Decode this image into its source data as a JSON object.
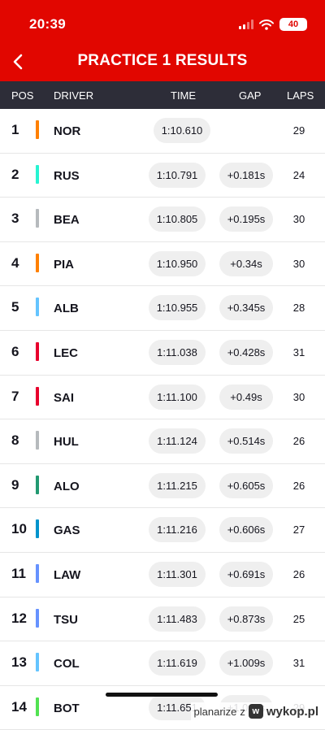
{
  "status_bar": {
    "time": "20:39",
    "battery": "40"
  },
  "header": {
    "title": "PRACTICE 1 RESULTS"
  },
  "columns": {
    "pos": "POS",
    "driver": "DRIVER",
    "time": "TIME",
    "gap": "GAP",
    "laps": "LAPS"
  },
  "colors": {
    "header": "#e10600",
    "column_bar": "#2d2d38"
  },
  "rows": [
    {
      "pos": "1",
      "driver": "NOR",
      "time": "1:10.610",
      "gap": "",
      "laps": "29",
      "color": "#ff8000"
    },
    {
      "pos": "2",
      "driver": "RUS",
      "time": "1:10.791",
      "gap": "+0.181s",
      "laps": "24",
      "color": "#27f4d2"
    },
    {
      "pos": "3",
      "driver": "BEA",
      "time": "1:10.805",
      "gap": "+0.195s",
      "laps": "30",
      "color": "#b6babd"
    },
    {
      "pos": "4",
      "driver": "PIA",
      "time": "1:10.950",
      "gap": "+0.34s",
      "laps": "30",
      "color": "#ff8000"
    },
    {
      "pos": "5",
      "driver": "ALB",
      "time": "1:10.955",
      "gap": "+0.345s",
      "laps": "28",
      "color": "#64c4ff"
    },
    {
      "pos": "6",
      "driver": "LEC",
      "time": "1:11.038",
      "gap": "+0.428s",
      "laps": "31",
      "color": "#e8002d"
    },
    {
      "pos": "7",
      "driver": "SAI",
      "time": "1:11.100",
      "gap": "+0.49s",
      "laps": "30",
      "color": "#e8002d"
    },
    {
      "pos": "8",
      "driver": "HUL",
      "time": "1:11.124",
      "gap": "+0.514s",
      "laps": "26",
      "color": "#b6babd"
    },
    {
      "pos": "9",
      "driver": "ALO",
      "time": "1:11.215",
      "gap": "+0.605s",
      "laps": "26",
      "color": "#229971"
    },
    {
      "pos": "10",
      "driver": "GAS",
      "time": "1:11.216",
      "gap": "+0.606s",
      "laps": "27",
      "color": "#0093cc"
    },
    {
      "pos": "11",
      "driver": "LAW",
      "time": "1:11.301",
      "gap": "+0.691s",
      "laps": "26",
      "color": "#6692ff"
    },
    {
      "pos": "12",
      "driver": "TSU",
      "time": "1:11.483",
      "gap": "+0.873s",
      "laps": "25",
      "color": "#6692ff"
    },
    {
      "pos": "13",
      "driver": "COL",
      "time": "1:11.619",
      "gap": "+1.009s",
      "laps": "31",
      "color": "#64c4ff"
    },
    {
      "pos": "14",
      "driver": "BOT",
      "time": "1:11.651",
      "gap": "+1.041s",
      "laps": "29",
      "color": "#52e252"
    }
  ],
  "watermark": {
    "user": "planarize",
    "separator": "z",
    "site": "wykop.pl"
  }
}
